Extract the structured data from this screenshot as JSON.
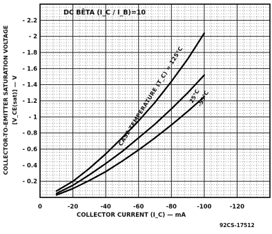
{
  "chart_data": {
    "type": "line",
    "annotation": "DC BÊTA (I_C / I_B)=10",
    "ylabel_line1": "COLLECTOR-TO-EMITTER SATURATION VOLTAGE",
    "ylabel_line2": "[V_CE(sat)] — V",
    "xlabel": "COLLECTOR CURRENT (I_C) — mA",
    "figure_id": "92CS-17512",
    "curve_label_prefix": "CASE TEMPERATURE (T_C) = ",
    "xlim": [
      0,
      -140
    ],
    "ylim": [
      0,
      -2.4
    ],
    "x_ticks": [
      {
        "value": 0,
        "label": "0"
      },
      {
        "value": -20,
        "label": "-20"
      },
      {
        "value": -40,
        "label": "-40"
      },
      {
        "value": -60,
        "label": "-60"
      },
      {
        "value": -80,
        "label": "-80"
      },
      {
        "value": -100,
        "label": "-100"
      },
      {
        "value": -120,
        "label": "-120"
      }
    ],
    "y_ticks": [
      {
        "value": -0.2,
        "label": "- 0.2"
      },
      {
        "value": -0.4,
        "label": "- 0.4"
      },
      {
        "value": -0.6,
        "label": "- 0.6"
      },
      {
        "value": -0.8,
        "label": "- 0.8"
      },
      {
        "value": -1.0,
        "label": "- 1"
      },
      {
        "value": -1.2,
        "label": "- 1.2"
      },
      {
        "value": -1.4,
        "label": "- 1.4"
      },
      {
        "value": -1.6,
        "label": "- 1.6"
      },
      {
        "value": -1.8,
        "label": "- 1.8"
      },
      {
        "value": -2.0,
        "label": "- 2"
      },
      {
        "value": -2.2,
        "label": "- 2.2"
      }
    ],
    "series": [
      {
        "name": "125°C",
        "x": [
          -10,
          -20,
          -30,
          -40,
          -50,
          -60,
          -70,
          -80,
          -90,
          -100
        ],
        "y": [
          -0.08,
          -0.2,
          -0.36,
          -0.54,
          -0.74,
          -0.95,
          -1.18,
          -1.44,
          -1.72,
          -2.04
        ]
      },
      {
        "name": "25°C",
        "x": [
          -10,
          -20,
          -30,
          -40,
          -50,
          -60,
          -70,
          -80,
          -90,
          -100
        ],
        "y": [
          -0.05,
          -0.15,
          -0.28,
          -0.42,
          -0.57,
          -0.74,
          -0.91,
          -1.1,
          -1.3,
          -1.52
        ]
      },
      {
        "name": "-55°C",
        "x": [
          -10,
          -20,
          -30,
          -40,
          -50,
          -60,
          -70,
          -80,
          -90,
          -100
        ],
        "y": [
          -0.03,
          -0.11,
          -0.21,
          -0.32,
          -0.45,
          -0.59,
          -0.74,
          -0.9,
          -1.07,
          -1.25
        ]
      }
    ]
  }
}
